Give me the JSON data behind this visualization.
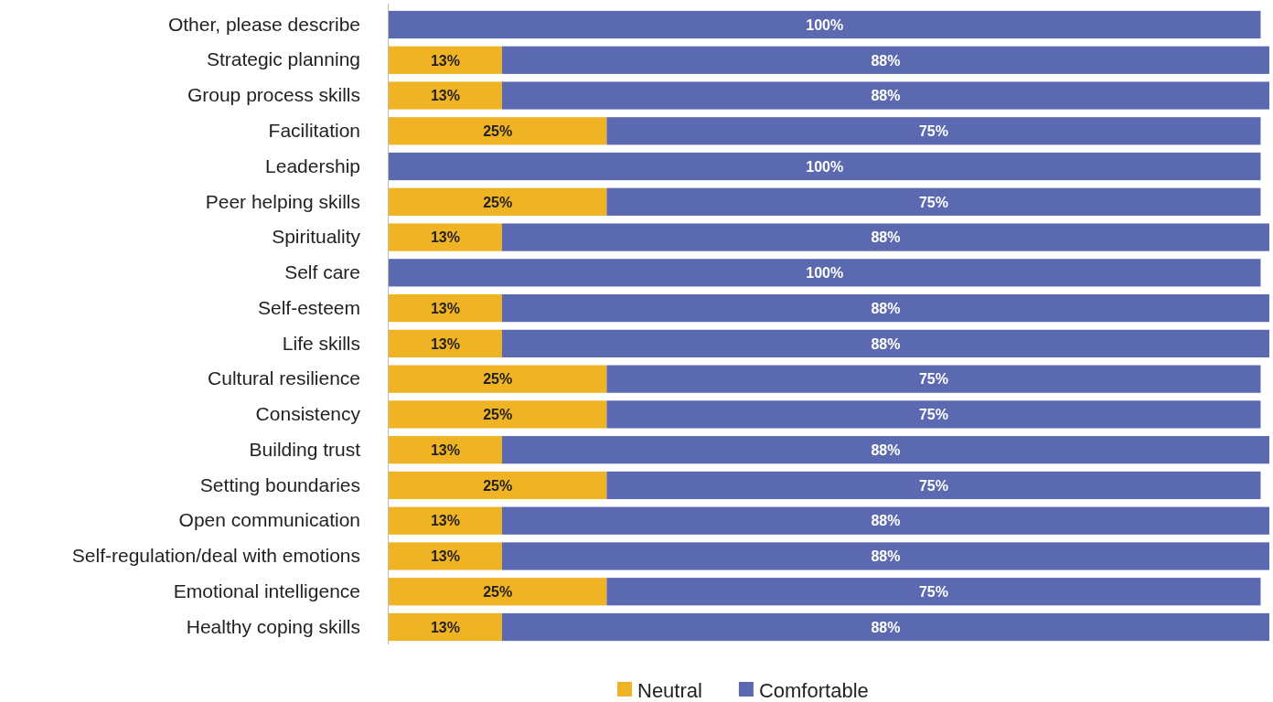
{
  "chart_data": {
    "type": "bar",
    "orientation": "horizontal",
    "stacked": true,
    "legend": "bottom",
    "categories": [
      "Other, please describe",
      "Strategic planning",
      "Group process skills",
      "Facilitation",
      "Leadership",
      "Peer helping skills",
      "Spirituality",
      "Self care",
      "Self-esteem",
      "Life skills",
      "Cultural resilience",
      "Consistency",
      "Building trust",
      "Setting boundaries",
      "Open communication",
      "Self-regulation/deal with emotions",
      "Emotional intelligence",
      "Healthy coping skills"
    ],
    "series": [
      {
        "name": "Neutral",
        "color": "#f0b323",
        "values": [
          null,
          13,
          13,
          25,
          null,
          25,
          13,
          null,
          13,
          13,
          25,
          25,
          13,
          25,
          13,
          13,
          25,
          13
        ],
        "value_labels": [
          null,
          "13%",
          "13%",
          "25%",
          null,
          "25%",
          "13%",
          null,
          "13%",
          "13%",
          "25%",
          "25%",
          "13%",
          "25%",
          "13%",
          "13%",
          "25%",
          "13%"
        ]
      },
      {
        "name": "Comfortable",
        "color": "#5b6ab0",
        "values": [
          100,
          88,
          88,
          75,
          100,
          75,
          88,
          100,
          88,
          88,
          75,
          75,
          88,
          75,
          88,
          88,
          75,
          88
        ],
        "value_labels": [
          "100%",
          "88%",
          "88%",
          "75%",
          "100%",
          "75%",
          "88%",
          "100%",
          "88%",
          "88%",
          "75%",
          "75%",
          "88%",
          "75%",
          "88%",
          "88%",
          "75%",
          "88%"
        ]
      }
    ]
  }
}
